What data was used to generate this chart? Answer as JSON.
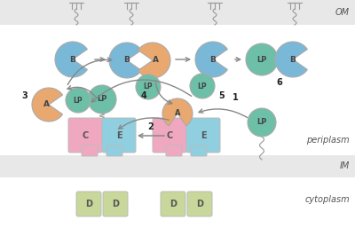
{
  "bg_color": "#e8e8e8",
  "white": "#ffffff",
  "color_A": "#e8a870",
  "color_B": "#7ab8d8",
  "color_LP": "#6dbfa8",
  "color_C": "#f0a8c0",
  "color_E": "#90cfe0",
  "color_D": "#c8d89a",
  "color_arrow": "#888888",
  "label_color": "#555555",
  "om_label": "OM",
  "im_label": "IM",
  "periplasm_label": "periplasm",
  "cytoplasm_label": "cytoplasm"
}
